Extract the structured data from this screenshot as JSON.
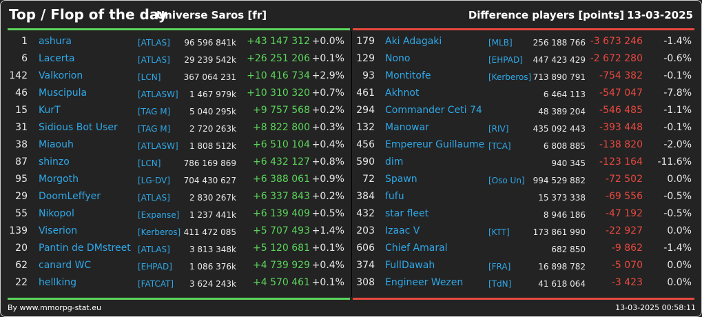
{
  "header": {
    "title": "Top / Flop of the day",
    "universe": "Universe Saros [fr]",
    "difference_label": "Difference players [points]",
    "date": "13-03-2025"
  },
  "colors": {
    "top": "#5bd65b",
    "flop": "#e8493f",
    "name": "#2fa8e8"
  },
  "top": [
    {
      "rank": "1",
      "name": "ashura",
      "alliance": "[ATLAS]",
      "points": "96 596 841k",
      "delta": "+43 147 312",
      "pct": "+0.0%"
    },
    {
      "rank": "6",
      "name": "Lacerta",
      "alliance": "[ATLAS]",
      "points": "29 239 542k",
      "delta": "+26 251 206",
      "pct": "+0.1%"
    },
    {
      "rank": "142",
      "name": "Valkorion",
      "alliance": "[LCN]",
      "points": "367 064 231",
      "delta": "+10 416 734",
      "pct": "+2.9%"
    },
    {
      "rank": "46",
      "name": "Muscipula",
      "alliance": "[ATLASW]",
      "points": "1 467 979k",
      "delta": "+10 310 320",
      "pct": "+0.7%"
    },
    {
      "rank": "15",
      "name": "KurT",
      "alliance": "[TAG M]",
      "points": "5 040 295k",
      "delta": "+9 757 568",
      "pct": "+0.2%"
    },
    {
      "rank": "31",
      "name": "Sidious Bot User",
      "alliance": "[TAG M]",
      "points": "2 720 263k",
      "delta": "+8 822 800",
      "pct": "+0.3%"
    },
    {
      "rank": "38",
      "name": "Miaouh",
      "alliance": "[ATLASW]",
      "points": "1 808 512k",
      "delta": "+6 510 104",
      "pct": "+0.4%"
    },
    {
      "rank": "87",
      "name": "shinzo",
      "alliance": "[LCN]",
      "points": "786 169 869",
      "delta": "+6 432 127",
      "pct": "+0.8%"
    },
    {
      "rank": "95",
      "name": "Morgoth",
      "alliance": "[LG-DV]",
      "points": "704 430 627",
      "delta": "+6 388 061",
      "pct": "+0.9%"
    },
    {
      "rank": "29",
      "name": "DoomLeffyer",
      "alliance": "[ATLAS]",
      "points": "2 830 267k",
      "delta": "+6 337 843",
      "pct": "+0.2%"
    },
    {
      "rank": "55",
      "name": "Nikopol",
      "alliance": "[Expanse]",
      "points": "1 237 441k",
      "delta": "+6 139 409",
      "pct": "+0.5%"
    },
    {
      "rank": "139",
      "name": "Viserion",
      "alliance": "[Kerberos]",
      "points": "411 472 085",
      "delta": "+5 707 493",
      "pct": "+1.4%"
    },
    {
      "rank": "20",
      "name": "Pantin de DMstreet",
      "alliance": "[ATLAS]",
      "points": "3 813 348k",
      "delta": "+5 120 681",
      "pct": "+0.1%"
    },
    {
      "rank": "62",
      "name": "canard WC",
      "alliance": "[EHPAD]",
      "points": "1 086 376k",
      "delta": "+4 739 929",
      "pct": "+0.4%"
    },
    {
      "rank": "22",
      "name": "hellking",
      "alliance": "[FATCAT]",
      "points": "3 624 243k",
      "delta": "+4 570 461",
      "pct": "+0.1%"
    }
  ],
  "flop": [
    {
      "rank": "179",
      "name": "Aki Adagaki",
      "alliance": "[MLB]",
      "points": "256 188 766",
      "delta": "-3 673 246",
      "pct": "-1.4%"
    },
    {
      "rank": "129",
      "name": "Nono",
      "alliance": "[EHPAD]",
      "points": "447 423 429",
      "delta": "-2 672 280",
      "pct": "-0.6%"
    },
    {
      "rank": "93",
      "name": "Montitofe",
      "alliance": "[Kerberos]",
      "points": "713 890 791",
      "delta": "-754 382",
      "pct": "-0.1%"
    },
    {
      "rank": "461",
      "name": "Akhnot",
      "alliance": "",
      "points": "6 464 113",
      "delta": "-547 047",
      "pct": "-7.8%"
    },
    {
      "rank": "294",
      "name": "Commander Ceti 74",
      "alliance": "",
      "points": "48 389 204",
      "delta": "-546 485",
      "pct": "-1.1%"
    },
    {
      "rank": "132",
      "name": "Manowar",
      "alliance": "[RIV]",
      "points": "435 092 443",
      "delta": "-393 448",
      "pct": "-0.1%"
    },
    {
      "rank": "456",
      "name": "Empereur Guillaume",
      "alliance": "[TCA]",
      "points": "6 808 885",
      "delta": "-138 820",
      "pct": "-2.0%"
    },
    {
      "rank": "590",
      "name": "dim",
      "alliance": "",
      "points": "940 345",
      "delta": "-123 164",
      "pct": "-11.6%"
    },
    {
      "rank": "72",
      "name": "Spawn",
      "alliance": "[Oso Un]",
      "points": "994 529 882",
      "delta": "-72 502",
      "pct": "0.0%"
    },
    {
      "rank": "384",
      "name": "fufu",
      "alliance": "",
      "points": "15 373 338",
      "delta": "-69 556",
      "pct": "-0.5%"
    },
    {
      "rank": "432",
      "name": "star fleet",
      "alliance": "",
      "points": "8 946 186",
      "delta": "-47 192",
      "pct": "-0.5%"
    },
    {
      "rank": "203",
      "name": "Izaac V",
      "alliance": "[KTT]",
      "points": "173 861 990",
      "delta": "-22 927",
      "pct": "0.0%"
    },
    {
      "rank": "606",
      "name": "Chief Amaral",
      "alliance": "",
      "points": "682 850",
      "delta": "-9 862",
      "pct": "-1.4%"
    },
    {
      "rank": "374",
      "name": "FullDawah",
      "alliance": "[FRA]",
      "points": "16 898 782",
      "delta": "-5 070",
      "pct": "0.0%"
    },
    {
      "rank": "308",
      "name": "Engineer Wezen",
      "alliance": "[TdN]",
      "points": "41 618 064",
      "delta": "-3 423",
      "pct": "0.0%"
    }
  ],
  "footer": {
    "source": "By www.mmorpg-stat.eu",
    "timestamp": "13-03-2025 00:58:11"
  }
}
